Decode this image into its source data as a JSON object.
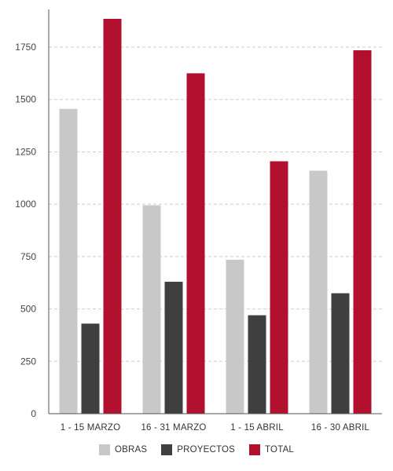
{
  "chart_data": {
    "type": "bar",
    "categories": [
      "1 - 15 MARZO",
      "16 - 31 MARZO",
      "1 - 15 ABRIL",
      "16 - 30 ABRIL"
    ],
    "series": [
      {
        "name": "OBRAS",
        "color": "#c8c8c8",
        "values": [
          1455,
          995,
          735,
          1160
        ]
      },
      {
        "name": "PROYECTOS",
        "color": "#3f3f3f",
        "values": [
          430,
          630,
          470,
          575
        ]
      },
      {
        "name": "TOTAL",
        "color": "#b2102f",
        "values": [
          1885,
          1625,
          1205,
          1735
        ]
      }
    ],
    "yticks": [
      0,
      250,
      500,
      750,
      1000,
      1250,
      1500,
      1750
    ],
    "ylim": [
      0,
      1930
    ],
    "grid": true,
    "legend_position": "bottom-center"
  }
}
